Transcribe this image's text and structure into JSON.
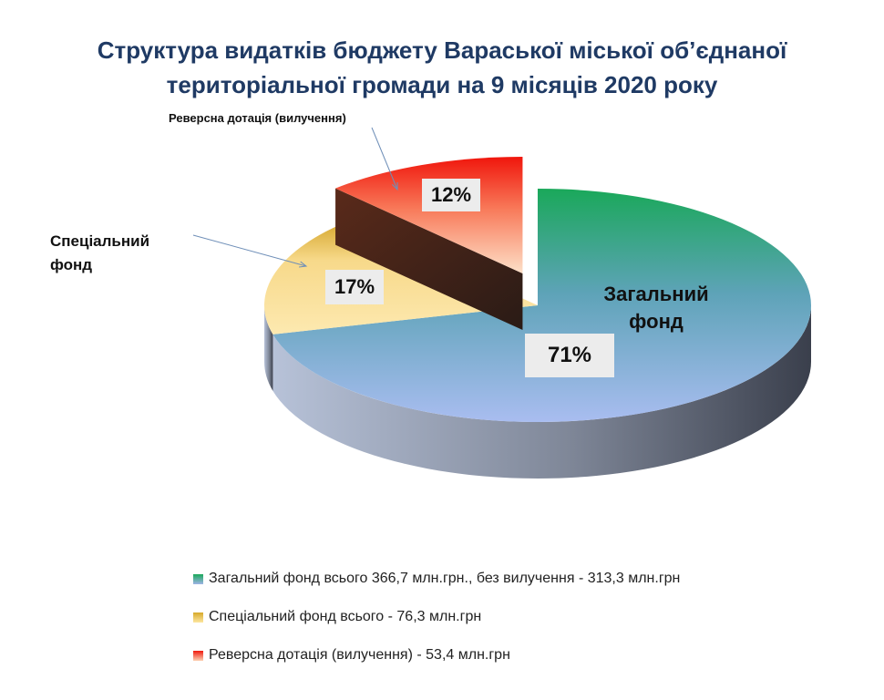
{
  "chart_data": {
    "type": "pie",
    "title_lines": [
      "Структура видатків бюджету Вараської міської об’єднаної",
      "територіальної громади на 9 місяців  2020 року"
    ],
    "slices": [
      {
        "key": "general",
        "label_lines": [
          "Загальний",
          "фонд"
        ],
        "percent_label": "71%",
        "value": 71,
        "color_top": "#1aa85a",
        "color_bottom": "#9fb4e6"
      },
      {
        "key": "special",
        "label_lines": [
          "Спеціальний",
          "фонд"
        ],
        "percent_label": "17%",
        "value": 17,
        "color_top": "#d7a92a",
        "color_bottom": "#fde6a0"
      },
      {
        "key": "reverse",
        "label": "Реверсна дотація (вилучення)",
        "percent_label": "12%",
        "value": 12,
        "exploded": true,
        "color_top": "#f01a0e",
        "color_bottom": "#fcd2b4"
      }
    ],
    "legend": [
      {
        "text": "Загальний фонд всього 366,7 млн.грн., без вилучення - 313,3 млн.грн",
        "color_top": "#1aa85a",
        "color_bottom": "#9fb4e6"
      },
      {
        "text": "Спеціальний фонд всього - 76,3 млн.грн",
        "color_top": "#d7a92a",
        "color_bottom": "#fde6a0"
      },
      {
        "text": "Реверсна дотація (вилучення) - 53,4 млн.грн",
        "color_top": "#f01a0e",
        "color_bottom": "#fcd2b4"
      }
    ],
    "legend_position": "bottom"
  }
}
